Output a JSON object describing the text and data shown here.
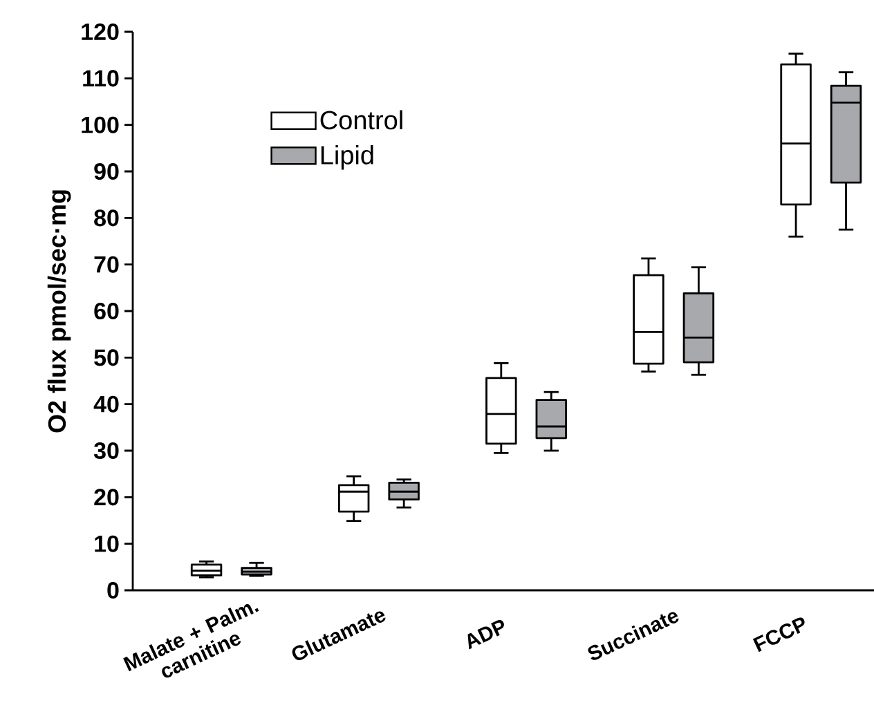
{
  "chart_data": {
    "type": "box",
    "ylabel": "O2 flux pmol/sec·mg",
    "categories": [
      "Malate + Palm. carnitine",
      "Glutamate",
      "ADP",
      "Succinate",
      "FCCP"
    ],
    "series": [
      {
        "name": "Control",
        "color": "#ffffff",
        "boxes": [
          {
            "low": 2.8,
            "q1": 3.2,
            "median": 4.2,
            "q3": 5.5,
            "high": 6.2
          },
          {
            "low": 14.9,
            "q1": 16.9,
            "median": 21.2,
            "q3": 22.6,
            "high": 24.5
          },
          {
            "low": 29.5,
            "q1": 31.5,
            "median": 37.9,
            "q3": 45.6,
            "high": 48.8
          },
          {
            "low": 47.0,
            "q1": 48.7,
            "median": 55.5,
            "q3": 67.7,
            "high": 71.3
          },
          {
            "low": 76.0,
            "q1": 82.9,
            "median": 96.0,
            "q3": 113.0,
            "high": 115.3
          }
        ]
      },
      {
        "name": "Lipid",
        "color": "#a7a9ac",
        "boxes": [
          {
            "low": 3.1,
            "q1": 3.4,
            "median": 4.0,
            "q3": 4.8,
            "high": 5.9
          },
          {
            "low": 17.8,
            "q1": 19.5,
            "median": 21.2,
            "q3": 23.1,
            "high": 23.8
          },
          {
            "low": 30.0,
            "q1": 32.7,
            "median": 35.2,
            "q3": 40.9,
            "high": 42.6
          },
          {
            "low": 46.3,
            "q1": 49.0,
            "median": 54.3,
            "q3": 63.8,
            "high": 69.4
          },
          {
            "low": 77.5,
            "q1": 87.6,
            "median": 104.8,
            "q3": 108.4,
            "high": 111.3
          }
        ]
      }
    ],
    "ylim": [
      0,
      120
    ],
    "yticks": [
      0,
      10,
      20,
      30,
      40,
      50,
      60,
      70,
      80,
      90,
      100,
      110,
      120
    ],
    "legend": "top left"
  }
}
